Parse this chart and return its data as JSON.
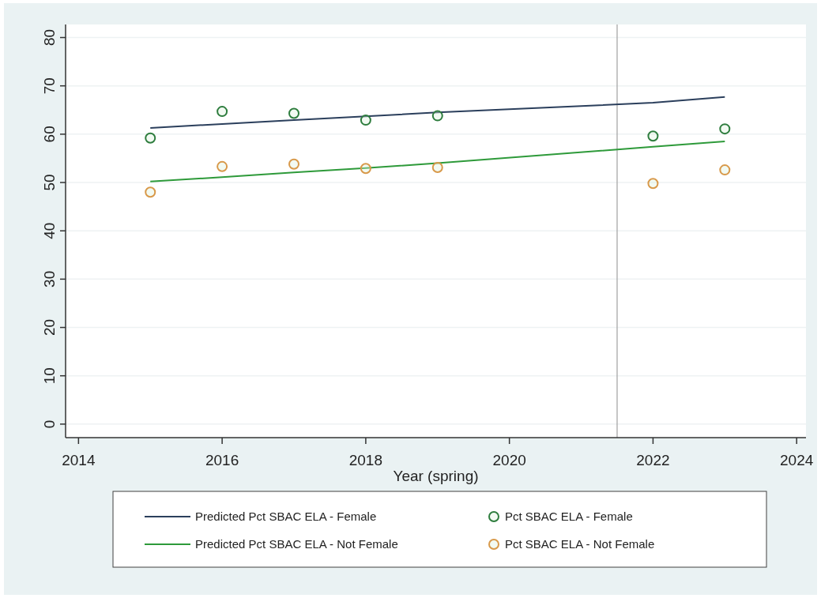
{
  "chart_data": {
    "type": "line",
    "xlabel": "Year (spring)",
    "x": [
      2015,
      2016,
      2017,
      2018,
      2019,
      2022,
      2023
    ],
    "series": [
      {
        "name": "Predicted Pct SBAC ELA - Female",
        "color": "#2b3f5c",
        "values": [
          61.3,
          62.1,
          62.9,
          63.7,
          64.5,
          66.5,
          67.7
        ]
      },
      {
        "name": "Pct SBAC ELA - Female",
        "type": "scatter",
        "color": "#2e7d3e",
        "marker": "circle",
        "values": [
          59.2,
          64.7,
          64.3,
          62.9,
          63.8,
          59.6,
          61.1
        ]
      },
      {
        "name": "Predicted Pct SBAC ELA - Not Female",
        "color": "#2e9a3a",
        "values": [
          50.2,
          51.1,
          52.1,
          53.0,
          54.0,
          57.4,
          58.5
        ]
      },
      {
        "name": "Pct SBAC ELA - Not Female",
        "type": "scatter",
        "color": "#d8994a",
        "marker": "circle",
        "values": [
          48.0,
          53.3,
          53.8,
          52.9,
          53.1,
          49.8,
          52.6
        ]
      }
    ],
    "xlim": [
      2013.82,
      2024.13
    ],
    "xticks": [
      2014,
      2016,
      2018,
      2020,
      2022,
      2024
    ],
    "ylim": [
      -2.8,
      82.7
    ],
    "yticks": [
      0,
      10,
      20,
      30,
      40,
      50,
      60,
      70,
      80
    ],
    "ref_lines": [
      {
        "axis": "x",
        "value": 2021.5,
        "color": "#a0a0a0"
      }
    ],
    "grid": "y",
    "legend": "bottom"
  }
}
